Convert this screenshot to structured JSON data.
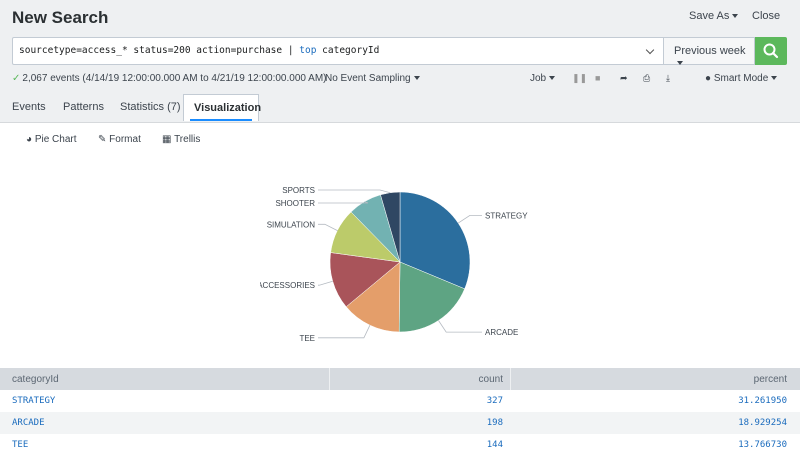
{
  "header": {
    "title": "New Search",
    "save_as": "Save As",
    "close": "Close"
  },
  "search": {
    "query_pre": "sourcetype=access_* status=200 action=purchase | ",
    "query_kw": "top",
    "query_post": " categoryId",
    "time_range": "Previous week"
  },
  "status": {
    "events": "2,067 events (4/14/19 12:00:00.000 AM to 4/21/19 12:00:00.000 AM)",
    "sampling": "No Event Sampling",
    "job": "Job",
    "mode": "Smart Mode"
  },
  "tabs": [
    {
      "label": "Events"
    },
    {
      "label": "Patterns"
    },
    {
      "label": "Statistics (7)"
    },
    {
      "label": "Visualization"
    }
  ],
  "viz_toolbar": {
    "chart_type": "Pie Chart",
    "format": "Format",
    "trellis": "Trellis"
  },
  "colors": {
    "accent": "#1a8cff",
    "search_button": "#5cb85c",
    "link": "#1a6bbd"
  },
  "chart_data": {
    "type": "pie",
    "title": "",
    "slices": [
      {
        "label": "STRATEGY",
        "value": 31.26195,
        "color": "#2b6e9e"
      },
      {
        "label": "ARCADE",
        "value": 18.929254,
        "color": "#5ea483"
      },
      {
        "label": "TEE",
        "value": 13.76673,
        "color": "#e49e6a"
      },
      {
        "label": "ACCESSORIES",
        "value": 13.193,
        "color": "#a9545a"
      },
      {
        "label": "SIMULATION",
        "value": 10.516,
        "color": "#bccb6a"
      },
      {
        "label": "SHOOTER",
        "value": 7.839,
        "color": "#72b2b2"
      },
      {
        "label": "SPORTS",
        "value": 4.493,
        "color": "#2f4763"
      }
    ]
  },
  "table": {
    "columns": [
      "categoryId",
      "count",
      "percent"
    ],
    "rows": [
      [
        "STRATEGY",
        "327",
        "31.261950"
      ],
      [
        "ARCADE",
        "198",
        "18.929254"
      ],
      [
        "TEE",
        "144",
        "13.766730"
      ]
    ]
  }
}
